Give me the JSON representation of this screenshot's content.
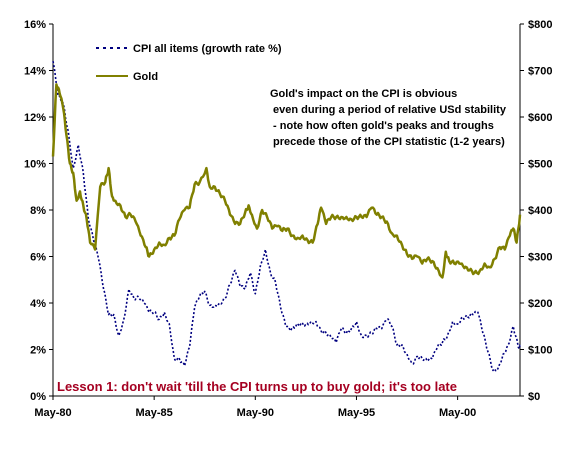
{
  "chart_data": {
    "type": "line",
    "x_range": [
      "1980-05",
      "2003-06"
    ],
    "x_ticks": [
      "May-80",
      "May-85",
      "May-90",
      "May-95",
      "May-00"
    ],
    "y_left_ticks": [
      "0%",
      "2%",
      "4%",
      "6%",
      "8%",
      "10%",
      "12%",
      "14%",
      "16%"
    ],
    "y_left_range": [
      0,
      16
    ],
    "y_right_ticks": [
      "$0",
      "$100",
      "$200",
      "$300",
      "$400",
      "$500",
      "$600",
      "$700",
      "$800"
    ],
    "y_right_range": [
      0,
      800
    ],
    "legend": [
      {
        "label": "CPI all items (growth rate %)"
      },
      {
        "label": "Gold"
      }
    ],
    "annotation": [
      "Gold's impact on the CPI is obvious",
      " even during a period of relative USd stability",
      " - note how often gold's peaks and troughs",
      " precede those of the CPI statistic (1-2 years)"
    ],
    "footnote": "Lesson 1: don't wait 'till the CPI turns up to buy gold; it's too late",
    "colors": {
      "cpi": "#000080",
      "gold": "#808000",
      "footnote": "#a50021"
    },
    "grid": false,
    "series": [
      {
        "name": "CPI all items (growth rate %)",
        "axis": "left",
        "style": "dotted",
        "points": [
          [
            "1980-05",
            14.4
          ],
          [
            "1980-08",
            12.9
          ],
          [
            "1980-11",
            12.6
          ],
          [
            "1981-02",
            11.4
          ],
          [
            "1981-05",
            9.8
          ],
          [
            "1981-08",
            10.8
          ],
          [
            "1981-11",
            9.6
          ],
          [
            "1982-02",
            7.6
          ],
          [
            "1982-05",
            6.7
          ],
          [
            "1982-08",
            5.9
          ],
          [
            "1982-11",
            4.6
          ],
          [
            "1983-02",
            3.5
          ],
          [
            "1983-05",
            3.5
          ],
          [
            "1983-08",
            2.6
          ],
          [
            "1983-11",
            3.3
          ],
          [
            "1984-02",
            4.6
          ],
          [
            "1984-05",
            4.2
          ],
          [
            "1984-08",
            4.2
          ],
          [
            "1984-11",
            4.0
          ],
          [
            "1985-02",
            3.6
          ],
          [
            "1985-05",
            3.6
          ],
          [
            "1985-08",
            3.3
          ],
          [
            "1985-11",
            3.6
          ],
          [
            "1986-02",
            3.1
          ],
          [
            "1986-05",
            1.6
          ],
          [
            "1986-08",
            1.6
          ],
          [
            "1986-11",
            1.3
          ],
          [
            "1987-02",
            2.1
          ],
          [
            "1987-05",
            3.8
          ],
          [
            "1987-08",
            4.3
          ],
          [
            "1987-11",
            4.5
          ],
          [
            "1988-02",
            3.9
          ],
          [
            "1988-05",
            3.9
          ],
          [
            "1988-08",
            4.0
          ],
          [
            "1988-11",
            4.2
          ],
          [
            "1989-02",
            4.8
          ],
          [
            "1989-05",
            5.4
          ],
          [
            "1989-08",
            4.7
          ],
          [
            "1989-11",
            4.6
          ],
          [
            "1990-02",
            5.3
          ],
          [
            "1990-05",
            4.4
          ],
          [
            "1990-08",
            5.6
          ],
          [
            "1990-11",
            6.3
          ],
          [
            "1991-02",
            5.3
          ],
          [
            "1991-05",
            4.9
          ],
          [
            "1991-08",
            3.8
          ],
          [
            "1991-11",
            3.0
          ],
          [
            "1992-02",
            2.8
          ],
          [
            "1992-05",
            3.0
          ],
          [
            "1992-08",
            3.1
          ],
          [
            "1992-11",
            3.1
          ],
          [
            "1993-02",
            3.2
          ],
          [
            "1993-05",
            3.2
          ],
          [
            "1993-08",
            2.8
          ],
          [
            "1993-11",
            2.7
          ],
          [
            "1994-02",
            2.5
          ],
          [
            "1994-05",
            2.3
          ],
          [
            "1994-08",
            2.9
          ],
          [
            "1994-11",
            2.7
          ],
          [
            "1995-02",
            2.9
          ],
          [
            "1995-05",
            3.2
          ],
          [
            "1995-08",
            2.6
          ],
          [
            "1995-11",
            2.6
          ],
          [
            "1996-02",
            2.7
          ],
          [
            "1996-05",
            2.9
          ],
          [
            "1996-08",
            2.9
          ],
          [
            "1996-11",
            3.3
          ],
          [
            "1997-02",
            3.0
          ],
          [
            "1997-05",
            2.2
          ],
          [
            "1997-08",
            2.2
          ],
          [
            "1997-11",
            1.8
          ],
          [
            "1998-02",
            1.4
          ],
          [
            "1998-05",
            1.7
          ],
          [
            "1998-08",
            1.6
          ],
          [
            "1998-11",
            1.5
          ],
          [
            "1999-02",
            1.6
          ],
          [
            "1999-05",
            2.1
          ],
          [
            "1999-08",
            2.3
          ],
          [
            "1999-11",
            2.6
          ],
          [
            "2000-02",
            3.2
          ],
          [
            "2000-05",
            3.1
          ],
          [
            "2000-08",
            3.4
          ],
          [
            "2000-11",
            3.4
          ],
          [
            "2001-02",
            3.5
          ],
          [
            "2001-05",
            3.6
          ],
          [
            "2001-08",
            2.7
          ],
          [
            "2001-11",
            1.9
          ],
          [
            "2002-02",
            1.1
          ],
          [
            "2002-05",
            1.2
          ],
          [
            "2002-08",
            1.8
          ],
          [
            "2002-11",
            2.2
          ],
          [
            "2003-02",
            3.0
          ],
          [
            "2003-05",
            2.1
          ],
          [
            "2003-06",
            2.1
          ]
        ]
      },
      {
        "name": "Gold",
        "axis": "right",
        "style": "solid",
        "points": [
          [
            "1980-05",
            515
          ],
          [
            "1980-07",
            670
          ],
          [
            "1980-09",
            650
          ],
          [
            "1980-11",
            620
          ],
          [
            "1981-01",
            560
          ],
          [
            "1981-03",
            500
          ],
          [
            "1981-05",
            480
          ],
          [
            "1981-07",
            420
          ],
          [
            "1981-09",
            440
          ],
          [
            "1981-11",
            410
          ],
          [
            "1982-01",
            380
          ],
          [
            "1982-03",
            330
          ],
          [
            "1982-06",
            315
          ],
          [
            "1982-09",
            450
          ],
          [
            "1982-12",
            460
          ],
          [
            "1983-02",
            490
          ],
          [
            "1983-04",
            430
          ],
          [
            "1983-06",
            420
          ],
          [
            "1983-09",
            410
          ],
          [
            "1983-12",
            385
          ],
          [
            "1984-03",
            390
          ],
          [
            "1984-06",
            375
          ],
          [
            "1984-09",
            345
          ],
          [
            "1984-12",
            320
          ],
          [
            "1985-02",
            300
          ],
          [
            "1985-05",
            315
          ],
          [
            "1985-08",
            330
          ],
          [
            "1985-11",
            325
          ],
          [
            "1986-02",
            340
          ],
          [
            "1986-05",
            345
          ],
          [
            "1986-08",
            380
          ],
          [
            "1986-11",
            400
          ],
          [
            "1987-02",
            405
          ],
          [
            "1987-05",
            455
          ],
          [
            "1987-08",
            460
          ],
          [
            "1987-12",
            490
          ],
          [
            "1988-02",
            450
          ],
          [
            "1988-05",
            450
          ],
          [
            "1988-08",
            435
          ],
          [
            "1988-11",
            420
          ],
          [
            "1989-02",
            390
          ],
          [
            "1989-05",
            370
          ],
          [
            "1989-08",
            370
          ],
          [
            "1989-11",
            395
          ],
          [
            "1990-01",
            410
          ],
          [
            "1990-03",
            390
          ],
          [
            "1990-06",
            360
          ],
          [
            "1990-09",
            400
          ],
          [
            "1990-12",
            385
          ],
          [
            "1991-03",
            360
          ],
          [
            "1991-06",
            365
          ],
          [
            "1991-09",
            355
          ],
          [
            "1991-12",
            360
          ],
          [
            "1992-03",
            345
          ],
          [
            "1992-06",
            340
          ],
          [
            "1992-09",
            345
          ],
          [
            "1992-12",
            335
          ],
          [
            "1993-03",
            330
          ],
          [
            "1993-06",
            370
          ],
          [
            "1993-08",
            405
          ],
          [
            "1993-11",
            370
          ],
          [
            "1994-02",
            385
          ],
          [
            "1994-05",
            385
          ],
          [
            "1994-08",
            385
          ],
          [
            "1994-11",
            385
          ],
          [
            "1995-02",
            380
          ],
          [
            "1995-05",
            385
          ],
          [
            "1995-08",
            385
          ],
          [
            "1995-11",
            385
          ],
          [
            "1996-02",
            405
          ],
          [
            "1996-05",
            390
          ],
          [
            "1996-08",
            385
          ],
          [
            "1996-11",
            375
          ],
          [
            "1997-02",
            350
          ],
          [
            "1997-05",
            345
          ],
          [
            "1997-08",
            325
          ],
          [
            "1997-11",
            305
          ],
          [
            "1998-02",
            295
          ],
          [
            "1998-05",
            300
          ],
          [
            "1998-08",
            285
          ],
          [
            "1998-11",
            295
          ],
          [
            "1999-02",
            290
          ],
          [
            "1999-05",
            275
          ],
          [
            "1999-08",
            255
          ],
          [
            "1999-10",
            310
          ],
          [
            "1999-12",
            290
          ],
          [
            "2000-03",
            285
          ],
          [
            "2000-06",
            285
          ],
          [
            "2000-09",
            275
          ],
          [
            "2000-12",
            270
          ],
          [
            "2001-03",
            265
          ],
          [
            "2001-06",
            268
          ],
          [
            "2001-09",
            285
          ],
          [
            "2001-12",
            277
          ],
          [
            "2002-03",
            295
          ],
          [
            "2002-06",
            320
          ],
          [
            "2002-09",
            315
          ],
          [
            "2002-12",
            345
          ],
          [
            "2003-02",
            360
          ],
          [
            "2003-04",
            330
          ],
          [
            "2003-06",
            390
          ]
        ]
      }
    ]
  }
}
